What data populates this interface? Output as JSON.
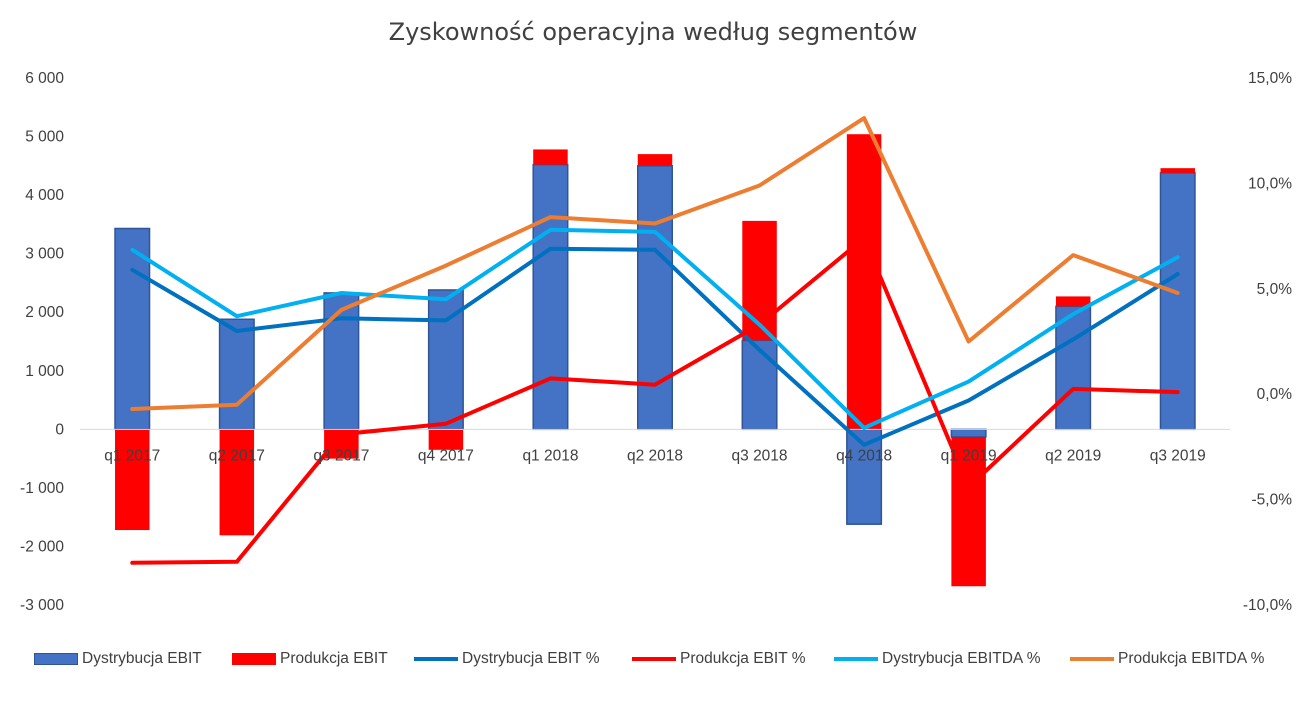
{
  "chart_data": {
    "type": "bar",
    "title": "Zyskowność operacyjna według segmentów",
    "categories": [
      "q1 2017",
      "q2 2017",
      "q3 2017",
      "q4 2017",
      "q1 2018",
      "q2 2018",
      "q3 2018",
      "q4 2018",
      "q1 2019",
      "q2 2019",
      "q3 2019"
    ],
    "y_left": {
      "range": [
        -3000,
        6000
      ],
      "ticks": [
        -3000,
        -2000,
        -1000,
        0,
        1000,
        2000,
        3000,
        4000,
        5000,
        6000
      ],
      "tick_labels": [
        "-3 000",
        "-2 000",
        "-1 000",
        "0",
        "1 000",
        "2 000",
        "3 000",
        "4 000",
        "5 000",
        "6 000"
      ]
    },
    "y_right": {
      "range": [
        -10,
        15
      ],
      "ticks": [
        -10,
        -5,
        0,
        5,
        10,
        15
      ],
      "tick_labels": [
        "-10,0%",
        "-5,0%",
        "0,0%",
        "5,0%",
        "10,0%",
        "15,0%"
      ]
    },
    "series": [
      {
        "name": "Dystrybucja EBIT",
        "type": "bar",
        "axis": "left",
        "color": "#4472C4",
        "values": [
          3430,
          1880,
          2330,
          2380,
          4520,
          4500,
          1520,
          -1620,
          -130,
          2100,
          4380
        ]
      },
      {
        "name": "Produkcja EBIT",
        "type": "bar",
        "axis": "left",
        "color": "#FF0000",
        "values": [
          -1720,
          -1810,
          -500,
          -350,
          260,
          200,
          2040,
          5040,
          -2550,
          170,
          80
        ]
      },
      {
        "name": "Dystrybucja EBIT %",
        "type": "line",
        "axis": "right",
        "color": "#0070C0",
        "values": [
          5.9,
          3.0,
          3.6,
          3.5,
          6.9,
          6.85,
          2.1,
          -2.4,
          -0.3,
          2.6,
          5.7
        ]
      },
      {
        "name": "Produkcja EBIT %",
        "type": "line",
        "axis": "right",
        "color": "#FF0000",
        "values": [
          -8.0,
          -7.95,
          -1.9,
          -1.4,
          0.75,
          0.45,
          3.3,
          7.4,
          -4.4,
          0.25,
          0.1
        ]
      },
      {
        "name": "Dystrybucja EBITDA %",
        "type": "line",
        "axis": "right",
        "color": "#00B0F0",
        "values": [
          6.85,
          3.7,
          4.8,
          4.5,
          7.8,
          7.7,
          3.3,
          -1.6,
          0.6,
          3.8,
          6.5
        ]
      },
      {
        "name": "Produkcja EBITDA %",
        "type": "line",
        "axis": "right",
        "color": "#ED7D31",
        "values": [
          -0.7,
          -0.5,
          4.0,
          6.1,
          8.4,
          8.1,
          9.9,
          13.1,
          2.5,
          6.6,
          4.8
        ]
      }
    ],
    "legend_position": "bottom",
    "grid": false
  }
}
